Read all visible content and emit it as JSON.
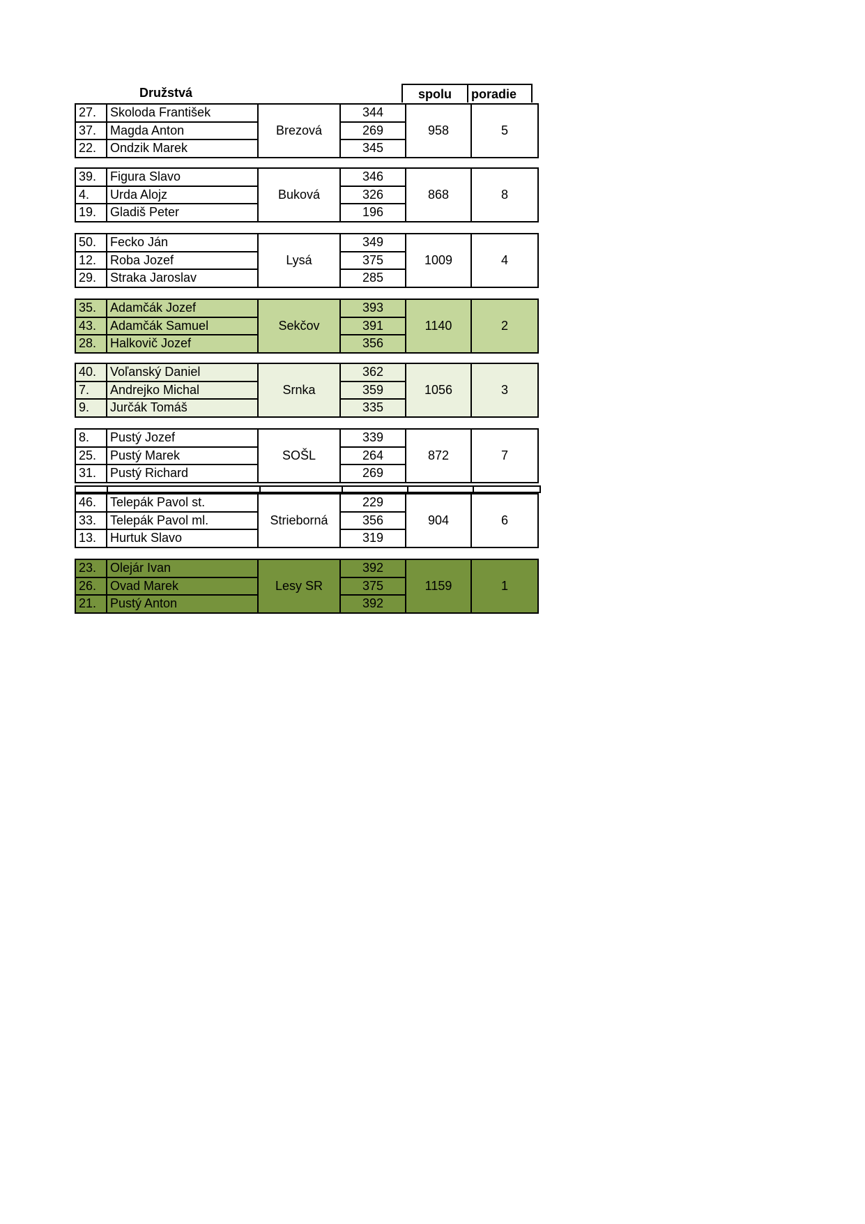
{
  "header": {
    "title": "Družstvá",
    "sum_label": "spolu",
    "rank_label": "poradie"
  },
  "colors": {
    "second": "#c4d79b",
    "third": "#ebf1de",
    "first": "#76933c"
  },
  "teams": [
    {
      "club": "Brezová",
      "total": "958",
      "rank": "5",
      "members": [
        {
          "no": "27.",
          "name": "Skoloda František",
          "score": "344"
        },
        {
          "no": "37.",
          "name": "Magda Anton",
          "score": "269"
        },
        {
          "no": "22.",
          "name": "Ondzik Marek",
          "score": "345"
        }
      ]
    },
    {
      "club": "Buková",
      "total": "868",
      "rank": "8",
      "members": [
        {
          "no": "39.",
          "name": "Figura Slavo",
          "score": "346"
        },
        {
          "no": "4.",
          "name": "Urda Alojz",
          "score": "326"
        },
        {
          "no": "19.",
          "name": "Gladiš Peter",
          "score": "196"
        }
      ]
    },
    {
      "club": "Lysá",
      "total": "1009",
      "rank": "4",
      "members": [
        {
          "no": "50.",
          "name": "Fecko Ján",
          "score": "349"
        },
        {
          "no": "12.",
          "name": "Roba Jozef",
          "score": "375"
        },
        {
          "no": "29.",
          "name": "Straka Jaroslav",
          "score": "285"
        }
      ]
    },
    {
      "club": "Sekčov",
      "total": "1140",
      "rank": "2",
      "members": [
        {
          "no": "35.",
          "name": "Adamčák Jozef",
          "score": "393"
        },
        {
          "no": "43.",
          "name": "Adamčák Samuel",
          "score": "391"
        },
        {
          "no": "28.",
          "name": "Halkovič Jozef",
          "score": "356"
        }
      ]
    },
    {
      "club": "Srnka",
      "total": "1056",
      "rank": "3",
      "members": [
        {
          "no": "40.",
          "name": "Voľanský Daniel",
          "score": "362"
        },
        {
          "no": "7.",
          "name": "Andrejko Michal",
          "score": "359"
        },
        {
          "no": "9.",
          "name": "Jurčák Tomáš",
          "score": "335"
        }
      ]
    },
    {
      "club": "SOŠL",
      "total": "872",
      "rank": "7",
      "members": [
        {
          "no": "8.",
          "name": "Pustý Jozef",
          "score": "339"
        },
        {
          "no": "25.",
          "name": "Pustý Marek",
          "score": "264"
        },
        {
          "no": "31.",
          "name": "Pustý Richard",
          "score": "269"
        }
      ]
    },
    {
      "club": "Strieborná",
      "total": "904",
      "rank": "6",
      "members": [
        {
          "no": "46.",
          "name": "Telepák Pavol st.",
          "score": "229"
        },
        {
          "no": "33.",
          "name": "Telepák Pavol ml.",
          "score": "356"
        },
        {
          "no": "13.",
          "name": "Hurtuk Slavo",
          "score": "319"
        }
      ]
    },
    {
      "club": "Lesy SR",
      "total": "1159",
      "rank": "1",
      "members": [
        {
          "no": "23.",
          "name": "Olejár Ivan",
          "score": "392"
        },
        {
          "no": "26.",
          "name": "Ovad Marek",
          "score": "375"
        },
        {
          "no": "21.",
          "name": "Pustý Anton",
          "score": "392"
        }
      ]
    }
  ]
}
